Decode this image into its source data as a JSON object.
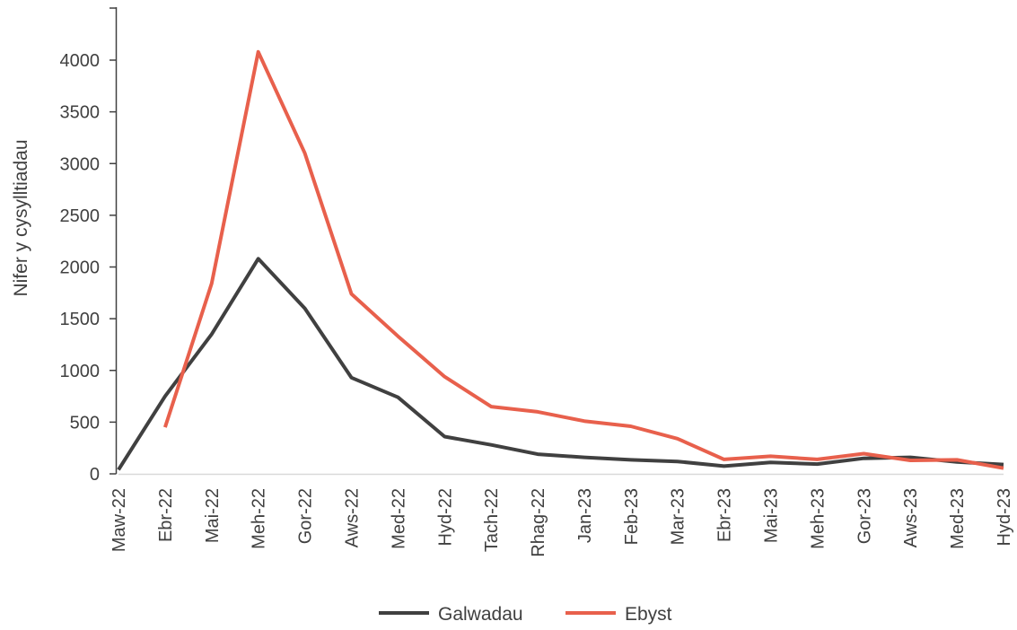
{
  "chart_data": {
    "type": "line",
    "title": "",
    "xlabel": "",
    "ylabel": "Nifer y cysylltiadau",
    "ylim": [
      0,
      4000
    ],
    "yticks": [
      0,
      500,
      1000,
      1500,
      2000,
      2500,
      3000,
      3500,
      4000
    ],
    "grid": false,
    "legend_position": "bottom",
    "categories": [
      "Maw-22",
      "Ebr-22",
      "Mai-22",
      "Meh-22",
      "Gor-22",
      "Aws-22",
      "Med-22",
      "Hyd-22",
      "Tach-22",
      "Rhag-22",
      "Jan-23",
      "Feb-23",
      "Mar-23",
      "Ebr-23",
      "Mai-23",
      "Meh-23",
      "Gor-23",
      "Aws-23",
      "Med-23",
      "Hyd-23"
    ],
    "series": [
      {
        "name": "Galwadau",
        "color": "#404040",
        "values": [
          40,
          750,
          1350,
          2080,
          1600,
          930,
          740,
          360,
          280,
          190,
          160,
          135,
          120,
          75,
          110,
          95,
          150,
          160,
          115,
          90
        ]
      },
      {
        "name": "Ebyst",
        "color": "#E8604C",
        "values": [
          null,
          450,
          1840,
          4080,
          3100,
          1740,
          1330,
          940,
          650,
          600,
          510,
          460,
          340,
          140,
          170,
          140,
          195,
          130,
          135,
          55
        ]
      }
    ]
  }
}
